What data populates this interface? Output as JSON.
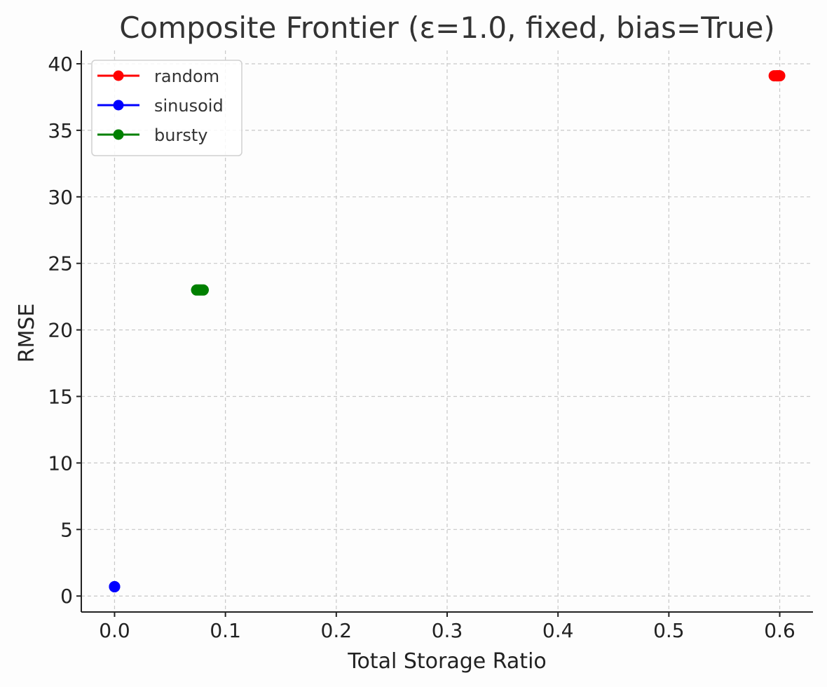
{
  "chart_data": {
    "type": "scatter",
    "title": "Composite Frontier (ε=1.0, fixed, bias=True)",
    "xlabel": "Total Storage Ratio",
    "ylabel": "RMSE",
    "xlim": [
      -0.03,
      0.63
    ],
    "ylim": [
      -1.2,
      41.0
    ],
    "xticks": [
      0.0,
      0.1,
      0.2,
      0.3,
      0.4,
      0.5,
      0.6
    ],
    "xtick_labels": [
      "0.0",
      "0.1",
      "0.2",
      "0.3",
      "0.4",
      "0.5",
      "0.6"
    ],
    "yticks": [
      0,
      5,
      10,
      15,
      20,
      25,
      30,
      35,
      40
    ],
    "ytick_labels": [
      "0",
      "5",
      "10",
      "15",
      "20",
      "25",
      "30",
      "35",
      "40"
    ],
    "grid": true,
    "legend_position": "top-left",
    "series": [
      {
        "name": "random",
        "color": "#ff0000",
        "points": [
          [
            0.595,
            39.1
          ],
          [
            0.597,
            39.1
          ],
          [
            0.598,
            39.1
          ],
          [
            0.599,
            39.1
          ],
          [
            0.6,
            39.1
          ]
        ]
      },
      {
        "name": "sinusoid",
        "color": "#0000ff",
        "points": [
          [
            0.0,
            0.7
          ],
          [
            0.0,
            0.7
          ]
        ]
      },
      {
        "name": "bursty",
        "color": "#008000",
        "points": [
          [
            0.074,
            23.0
          ],
          [
            0.076,
            23.0
          ],
          [
            0.078,
            23.0
          ],
          [
            0.08,
            23.0
          ]
        ]
      }
    ]
  }
}
